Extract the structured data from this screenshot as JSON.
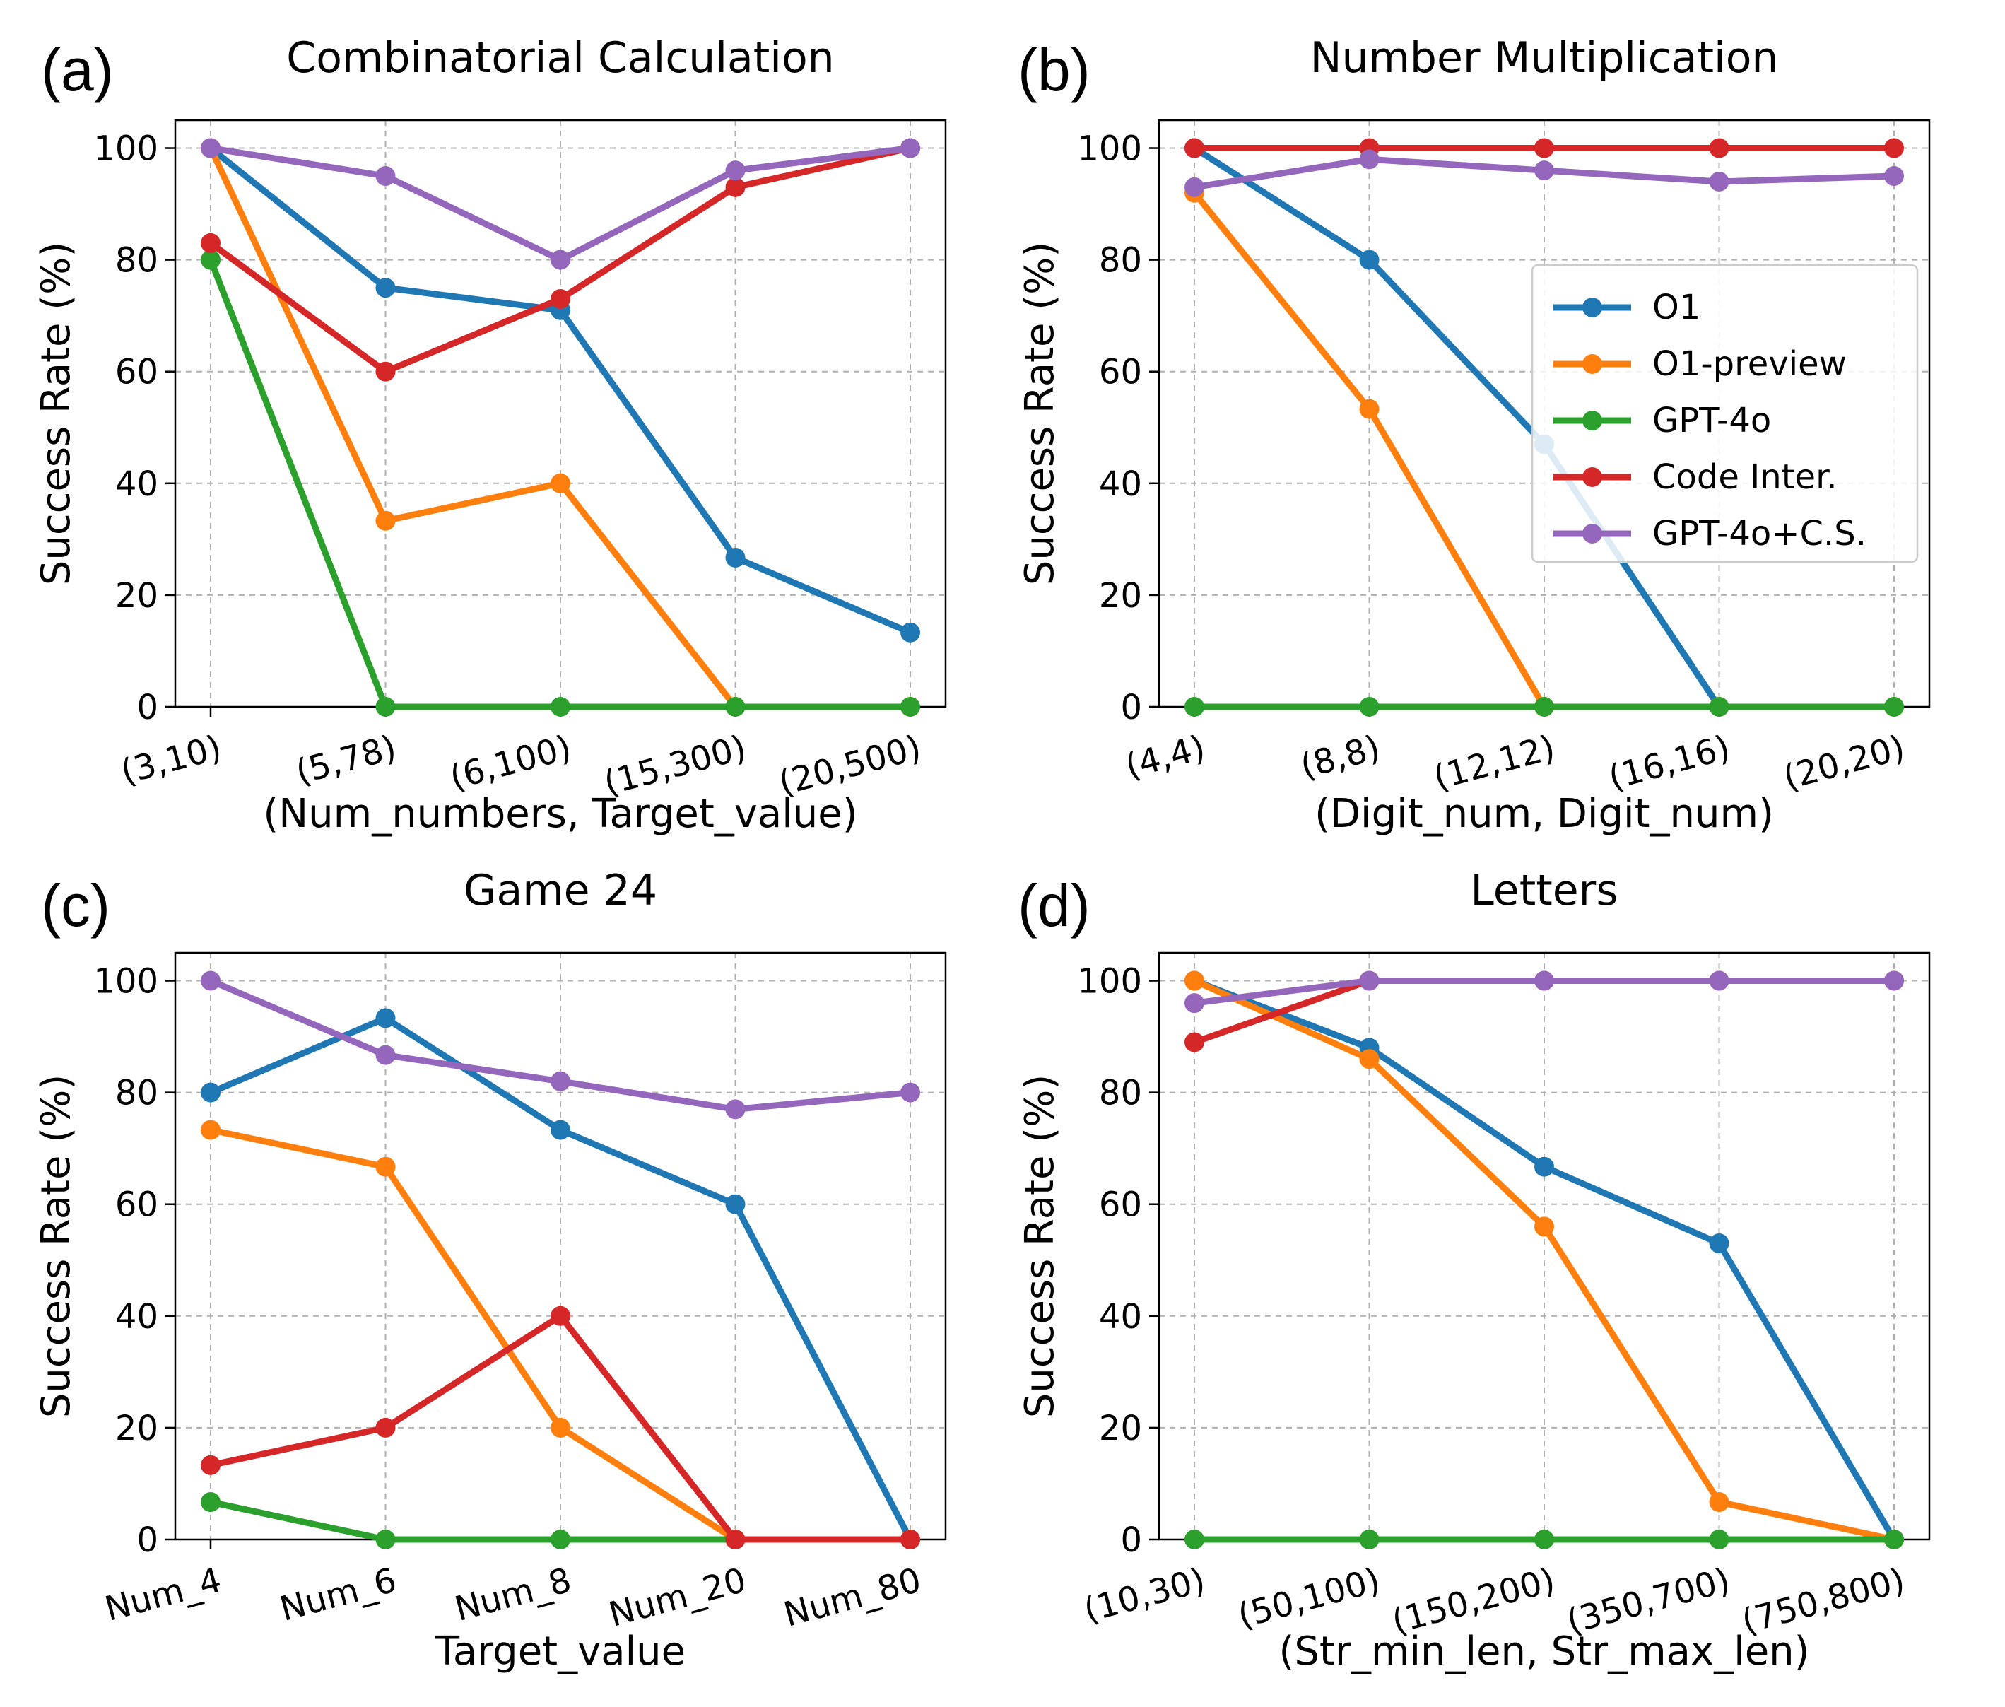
{
  "colors": {
    "O1": "#1f77b4",
    "O1-preview": "#ff7f0e",
    "GPT-4o": "#2ca02c",
    "Code Inter.": "#d62728",
    "GPT-4o+C.S.": "#9467bd",
    "grid": "#b0b0b0"
  },
  "legend": {
    "placement": "center-right of panel (b)",
    "entries": [
      "O1",
      "O1-preview",
      "GPT-4o",
      "Code Inter.",
      "GPT-4o+C.S."
    ]
  },
  "chart_data": [
    {
      "panel": "(a)",
      "type": "line",
      "title": "Combinatorial Calculation",
      "xlabel": "(Num_numbers, Target_value)",
      "ylabel": "Success Rate (%)",
      "categories": [
        "(3,10)",
        "(5,78)",
        "(6,100)",
        "(15,300)",
        "(20,500)"
      ],
      "ylim": [
        0,
        105
      ],
      "yticks": [
        0,
        20,
        40,
        60,
        80,
        100
      ],
      "grid": true,
      "series": [
        {
          "name": "O1",
          "values": [
            100,
            75,
            71,
            26.7,
            13.3
          ]
        },
        {
          "name": "O1-preview",
          "values": [
            100,
            33.3,
            40,
            0,
            0
          ]
        },
        {
          "name": "GPT-4o",
          "values": [
            80,
            0,
            0,
            0,
            0
          ]
        },
        {
          "name": "Code Inter.",
          "values": [
            83,
            60,
            73,
            93,
            100
          ]
        },
        {
          "name": "GPT-4o+C.S.",
          "values": [
            100,
            95,
            80,
            96,
            100
          ]
        }
      ]
    },
    {
      "panel": "(b)",
      "type": "line",
      "title": "Number Multiplication",
      "xlabel": "(Digit_num, Digit_num)",
      "ylabel": "Success Rate (%)",
      "categories": [
        "(4,4)",
        "(8,8)",
        "(12,12)",
        "(16,16)",
        "(20,20)"
      ],
      "ylim": [
        0,
        105
      ],
      "yticks": [
        0,
        20,
        40,
        60,
        80,
        100
      ],
      "grid": true,
      "series": [
        {
          "name": "O1",
          "values": [
            100,
            80,
            47,
            0,
            0
          ]
        },
        {
          "name": "O1-preview",
          "values": [
            92,
            53.3,
            0,
            0,
            0
          ]
        },
        {
          "name": "GPT-4o",
          "values": [
            0,
            0,
            0,
            0,
            0
          ]
        },
        {
          "name": "Code Inter.",
          "values": [
            100,
            100,
            100,
            100,
            100
          ]
        },
        {
          "name": "GPT-4o+C.S.",
          "values": [
            93,
            98,
            96,
            94,
            95
          ]
        }
      ]
    },
    {
      "panel": "(c)",
      "type": "line",
      "title": "Game 24",
      "xlabel": "Target_value",
      "ylabel": "Success Rate (%)",
      "categories": [
        "Num_4",
        "Num_6",
        "Num_8",
        "Num_20",
        "Num_80"
      ],
      "ylim": [
        0,
        105
      ],
      "yticks": [
        0,
        20,
        40,
        60,
        80,
        100
      ],
      "grid": true,
      "series": [
        {
          "name": "O1",
          "values": [
            80,
            93.3,
            73.3,
            60,
            0
          ]
        },
        {
          "name": "O1-preview",
          "values": [
            73.3,
            66.7,
            20,
            0,
            0
          ]
        },
        {
          "name": "GPT-4o",
          "values": [
            6.7,
            0,
            0,
            0,
            0
          ]
        },
        {
          "name": "Code Inter.",
          "values": [
            13.3,
            20,
            40,
            0,
            0
          ]
        },
        {
          "name": "GPT-4o+C.S.",
          "values": [
            100,
            86.7,
            82,
            77,
            80
          ]
        }
      ]
    },
    {
      "panel": "(d)",
      "type": "line",
      "title": "Letters",
      "xlabel": "(Str_min_len, Str_max_len)",
      "ylabel": "Success Rate (%)",
      "categories": [
        "(10,30)",
        "(50,100)",
        "(150,200)",
        "(350,700)",
        "(750,800)"
      ],
      "ylim": [
        0,
        105
      ],
      "yticks": [
        0,
        20,
        40,
        60,
        80,
        100
      ],
      "grid": true,
      "series": [
        {
          "name": "O1",
          "values": [
            100,
            88,
            66.7,
            53,
            0
          ]
        },
        {
          "name": "O1-preview",
          "values": [
            100,
            86,
            56,
            6.7,
            0
          ]
        },
        {
          "name": "GPT-4o",
          "values": [
            0,
            0,
            0,
            0,
            0
          ]
        },
        {
          "name": "Code Inter.",
          "values": [
            89,
            100,
            100,
            100,
            100
          ]
        },
        {
          "name": "GPT-4o+C.S.",
          "values": [
            96,
            100,
            100,
            100,
            100
          ]
        }
      ]
    }
  ]
}
